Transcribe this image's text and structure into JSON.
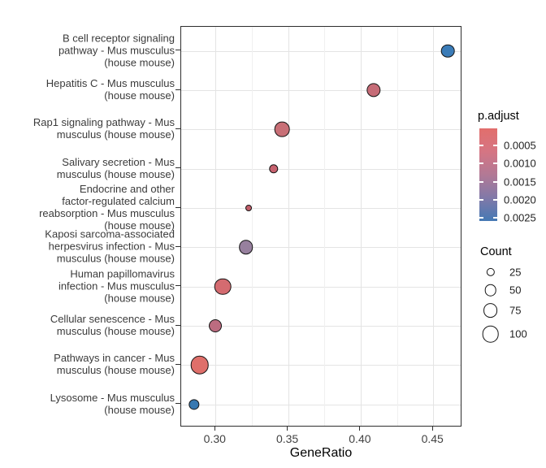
{
  "figure": {
    "background": "#ffffff",
    "panel_border_color": "#2e2e2e",
    "gridline_major_color": "#e4e4e4",
    "gridline_minor_color": "#f0f0f0"
  },
  "chart_data": {
    "type": "scatter",
    "subtype": "enrichment-dotplot",
    "title": "",
    "xlabel": "GeneRatio",
    "ylabel": "",
    "xlim": [
      0.276,
      0.47
    ],
    "x_ticks": [
      0.3,
      0.35,
      0.4,
      0.45
    ],
    "x_tick_labels": [
      "0.30",
      "0.35",
      "0.40",
      "0.45"
    ],
    "x_minor_ticks": [
      0.325,
      0.375,
      0.425
    ],
    "grid": "on",
    "legend_position": "right",
    "points": [
      {
        "pathway": "B cell receptor signaling pathway - Mus musculus (house mouse)",
        "label_lines": [
          "B cell receptor signaling",
          "pathway - Mus musculus",
          "(house mouse)"
        ],
        "gene_ratio": 0.46,
        "count": 65,
        "p_adjust": 0.0025,
        "color": "#3B7CB8"
      },
      {
        "pathway": "Hepatitis C - Mus musculus (house mouse)",
        "label_lines": [
          "Hepatitis C - Mus musculus",
          "(house mouse)"
        ],
        "gene_ratio": 0.409,
        "count": 71,
        "p_adjust": 0.0006,
        "color": "#C66C77"
      },
      {
        "pathway": "Rap1 signaling pathway - Mus musculus (house mouse)",
        "label_lines": [
          "Rap1 signaling pathway - Mus",
          "musculus (house mouse)"
        ],
        "gene_ratio": 0.346,
        "count": 82,
        "p_adjust": 0.0006,
        "color": "#C86F76"
      },
      {
        "pathway": "Salivary secretion - Mus musculus (house mouse)",
        "label_lines": [
          "Salivary secretion - Mus",
          "musculus (house mouse)"
        ],
        "gene_ratio": 0.34,
        "count": 31,
        "p_adjust": 0.0005,
        "color": "#C6616E"
      },
      {
        "pathway": "Endocrine and other factor-regulated calcium reabsorption - Mus musculus (house mouse)",
        "label_lines": [
          "Endocrine and other",
          "factor-regulated calcium",
          "reabsorption - Mus musculus",
          "(house mouse)"
        ],
        "gene_ratio": 0.323,
        "count": 15,
        "p_adjust": 0.0004,
        "color": "#C25E6A"
      },
      {
        "pathway": "Kaposi sarcoma-associated herpesvirus infection - Mus musculus (house mouse)",
        "label_lines": [
          "Kaposi sarcoma-associated",
          "herpesvirus infection - Mus",
          "musculus (house mouse)"
        ],
        "gene_ratio": 0.321,
        "count": 73,
        "p_adjust": 0.0016,
        "color": "#97809E"
      },
      {
        "pathway": "Human papillomavirus infection - Mus musculus (house mouse)",
        "label_lines": [
          "Human papillomavirus",
          "infection - Mus musculus",
          "(house mouse)"
        ],
        "gene_ratio": 0.305,
        "count": 100,
        "p_adjust": 0.0003,
        "color": "#D46B70"
      },
      {
        "pathway": "Cellular senescence - Mus musculus (house mouse)",
        "label_lines": [
          "Cellular senescence - Mus",
          "musculus (house mouse)"
        ],
        "gene_ratio": 0.3,
        "count": 60,
        "p_adjust": 0.0008,
        "color": "#BC6C80"
      },
      {
        "pathway": "Pathways in cancer - Mus musculus (house mouse)",
        "label_lines": [
          "Pathways in cancer - Mus",
          "musculus (house mouse)"
        ],
        "gene_ratio": 0.289,
        "count": 120,
        "p_adjust": 0.0001,
        "color": "#DF6F6A"
      },
      {
        "pathway": "Lysosome - Mus musculus (house mouse)",
        "label_lines": [
          "Lysosome - Mus musculus",
          "(house mouse)"
        ],
        "gene_ratio": 0.285,
        "count": 42,
        "p_adjust": 0.0024,
        "color": "#3778B1"
      }
    ],
    "color_legend": {
      "title": "p.adjust",
      "tick_labels": [
        "0.0005",
        "0.0010",
        "0.0015",
        "0.0020",
        "0.0025"
      ],
      "gradient_stops": [
        "#E26E6C",
        "#D57583",
        "#B27995",
        "#8179A8",
        "#4579B4"
      ]
    },
    "size_legend": {
      "title": "Count",
      "entries": [
        {
          "label": "25",
          "count": 25
        },
        {
          "label": "50",
          "count": 50
        },
        {
          "label": "75",
          "count": 75
        },
        {
          "label": "100",
          "count": 100
        }
      ]
    }
  }
}
